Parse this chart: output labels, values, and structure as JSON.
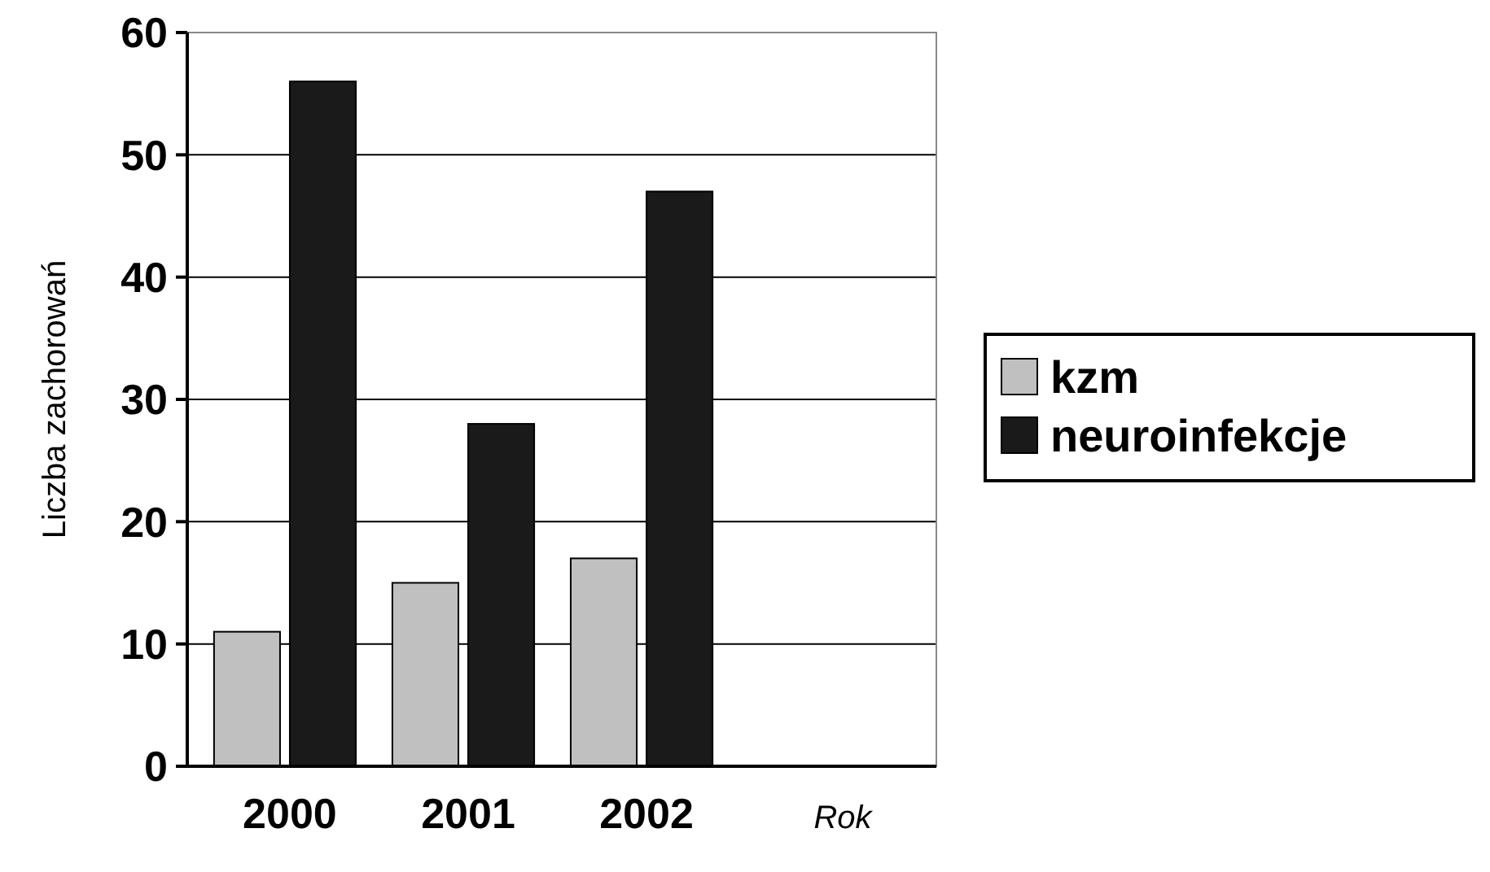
{
  "chart_data": {
    "type": "bar",
    "xlabel": "Rok",
    "ylabel": "Liczba zachorowań",
    "categories": [
      "2000",
      "2001",
      "2002"
    ],
    "series": [
      {
        "name": "kzm",
        "color": "#c0c0c0",
        "values": [
          11,
          15,
          17
        ]
      },
      {
        "name": "neuroinfekcje",
        "color": "#1a1a1a",
        "values": [
          56,
          28,
          47
        ]
      }
    ],
    "ylim": [
      0,
      60
    ],
    "yticks": [
      0,
      10,
      20,
      30,
      40,
      50,
      60
    ],
    "grid": "y",
    "legend": "right"
  }
}
